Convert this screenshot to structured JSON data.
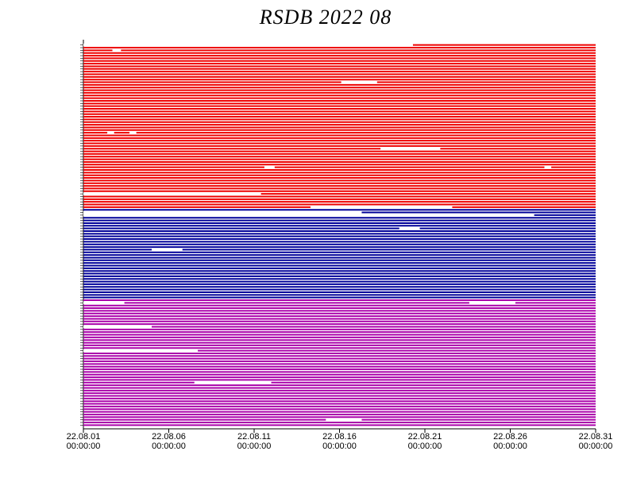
{
  "chart_data": {
    "type": "availability",
    "title": "RSDB  2022  08",
    "xlim": [
      1,
      31
    ],
    "xticks": [
      {
        "value": 1,
        "label": "22.08.01",
        "time": "00:00:00"
      },
      {
        "value": 6,
        "label": "22.08.06",
        "time": "00:00:00"
      },
      {
        "value": 11,
        "label": "22.08.11",
        "time": "00:00:00"
      },
      {
        "value": 16,
        "label": "22.08.16",
        "time": "00:00:00"
      },
      {
        "value": 21,
        "label": "22.08.21",
        "time": "00:00:00"
      },
      {
        "value": 26,
        "label": "22.08.26",
        "time": "00:00:00"
      },
      {
        "value": 31,
        "label": "22.08.31",
        "time": "00:00:00"
      }
    ],
    "groups": [
      {
        "color": "#ee0000",
        "rows": [
          [
            [
              1,
              20.3
            ]
          ],
          [],
          [
            [
              2.7,
              3.2
            ]
          ],
          [],
          [],
          [],
          [],
          [],
          [],
          [],
          [],
          [],
          [],
          [],
          [
            [
              16.1,
              18.2
            ]
          ],
          [],
          [],
          [],
          [],
          [],
          [],
          [],
          [],
          [],
          [],
          [],
          [],
          [],
          [],
          [],
          [],
          [],
          [],
          [
            [
              2.4,
              2.8
            ],
            [
              3.7,
              4.1
            ]
          ],
          [],
          [],
          [],
          [],
          [],
          [
            [
              18.4,
              21.9
            ]
          ],
          [],
          [],
          [],
          [],
          [],
          [],
          [
            [
              11.6,
              12.2
            ],
            [
              28,
              28.4
            ]
          ],
          [],
          [],
          [],
          [],
          [],
          [],
          [],
          [],
          [],
          [
            [
              1,
              11.4
            ]
          ],
          [],
          [],
          [],
          [],
          [
            [
              14.3,
              22.6
            ]
          ]
        ]
      },
      {
        "color": "#000099",
        "rows": [
          [],
          [
            [
              1,
              17.3
            ]
          ],
          [
            [
              1,
              27.4
            ]
          ],
          [],
          [],
          [],
          [],
          [
            [
              19.5,
              20.7
            ]
          ],
          [],
          [],
          [],
          [],
          [],
          [],
          [],
          [
            [
              5,
              6.8
            ]
          ],
          [],
          [],
          [],
          [],
          [],
          [],
          [],
          [],
          [],
          [],
          [],
          [],
          [],
          [],
          [],
          [],
          [],
          []
        ]
      },
      {
        "color": "#aa00aa",
        "rows": [
          [],
          [
            [
              1,
              3.4
            ],
            [
              23.6,
              26.3
            ]
          ],
          [],
          [],
          [],
          [],
          [],
          [],
          [],
          [],
          [
            [
              1,
              5
            ]
          ],
          [],
          [],
          [],
          [],
          [],
          [],
          [],
          [],
          [
            [
              1,
              7.7
            ]
          ],
          [],
          [],
          [],
          [],
          [],
          [],
          [],
          [],
          [],
          [],
          [],
          [
            [
              7.5,
              12
            ]
          ],
          [],
          [],
          [],
          [],
          [],
          [],
          [],
          [],
          [],
          [],
          [],
          [],
          [],
          [
            [
              15.2,
              17.3
            ]
          ],
          [],
          []
        ]
      }
    ]
  }
}
